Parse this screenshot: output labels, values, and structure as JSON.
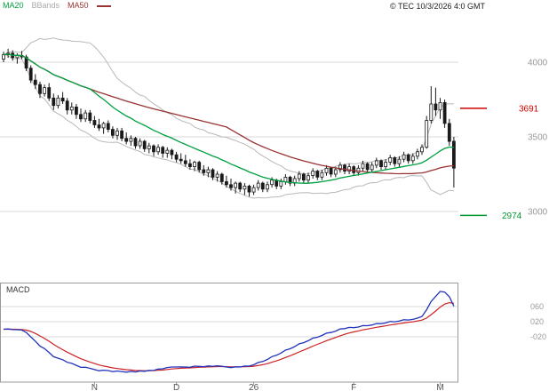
{
  "legend": {
    "ma20": "MA20",
    "bbands": "BBands",
    "ma50": "MA50"
  },
  "copyright": "© TEC 10/3/2026 4:0 GMT",
  "colors": {
    "ma20": "#00a040",
    "ma50": "#993333",
    "bbands": "#b8b8b8",
    "candle": "#1a1a1a",
    "macd_line": "#2233bb",
    "macd_signal": "#cc2222",
    "level_high": "#cc0000",
    "level_low": "#009933",
    "grid": "#d8d8d8",
    "axis_text": "#9a9a9a",
    "time_text": "#555555",
    "panel_border": "#999999"
  },
  "chart_data": {
    "type": "candlestick",
    "price_axis": {
      "ticks": [
        {
          "label": "4000",
          "value": 4000
        },
        {
          "label": "3500",
          "value": 3500
        },
        {
          "label": "3000",
          "value": 3000
        }
      ],
      "ylim": [
        2570,
        4360
      ]
    },
    "levels": [
      {
        "label": "3691",
        "value": 3691,
        "role": "resistance"
      },
      {
        "label": "2974",
        "value": 2974,
        "role": "support"
      }
    ],
    "x_axis": {
      "labels": [
        {
          "label": "N",
          "index": 20
        },
        {
          "label": "D",
          "index": 38
        },
        {
          "label": "26",
          "index": 55
        },
        {
          "label": "F",
          "index": 77
        },
        {
          "label": "M",
          "index": 96
        }
      ]
    },
    "indicators": {
      "ma20": {
        "period": 20
      },
      "ma50": {
        "period": 50
      },
      "bbands": {
        "period": 20,
        "stddev": 2
      },
      "macd": {
        "fast": 12,
        "slow": 26,
        "signal": 9
      }
    },
    "macd_axis": {
      "title": "MACD",
      "ticks": [
        {
          "label": "060",
          "value": 0.6
        },
        {
          "label": "020",
          "value": 0.2
        },
        {
          "label": "-020",
          "value": -0.2
        }
      ]
    },
    "candles": [
      [
        4020,
        4070,
        4000,
        4050
      ],
      [
        4050,
        4090,
        4030,
        4060
      ],
      [
        4060,
        4080,
        4010,
        4030
      ],
      [
        4030,
        4060,
        3990,
        4045
      ],
      [
        4045,
        4075,
        4020,
        4035
      ],
      [
        4035,
        4050,
        3940,
        3960
      ],
      [
        3960,
        3980,
        3860,
        3880
      ],
      [
        3880,
        3920,
        3820,
        3850
      ],
      [
        3850,
        3870,
        3760,
        3790
      ],
      [
        3790,
        3850,
        3770,
        3830
      ],
      [
        3830,
        3860,
        3740,
        3760
      ],
      [
        3760,
        3790,
        3680,
        3710
      ],
      [
        3710,
        3780,
        3690,
        3760
      ],
      [
        3760,
        3800,
        3720,
        3740
      ],
      [
        3740,
        3760,
        3650,
        3680
      ],
      [
        3680,
        3730,
        3650,
        3700
      ],
      [
        3700,
        3720,
        3620,
        3650
      ],
      [
        3650,
        3690,
        3600,
        3620
      ],
      [
        3620,
        3680,
        3600,
        3660
      ],
      [
        3660,
        3680,
        3590,
        3610
      ],
      [
        3610,
        3640,
        3560,
        3580
      ],
      [
        3580,
        3620,
        3540,
        3560
      ],
      [
        3560,
        3600,
        3520,
        3590
      ],
      [
        3590,
        3610,
        3530,
        3550
      ],
      [
        3550,
        3570,
        3490,
        3510
      ],
      [
        3510,
        3560,
        3480,
        3540
      ],
      [
        3540,
        3560,
        3470,
        3490
      ],
      [
        3490,
        3530,
        3450,
        3470
      ],
      [
        3470,
        3510,
        3440,
        3490
      ],
      [
        3490,
        3500,
        3420,
        3440
      ],
      [
        3440,
        3490,
        3420,
        3470
      ],
      [
        3470,
        3480,
        3400,
        3420
      ],
      [
        3420,
        3460,
        3390,
        3440
      ],
      [
        3440,
        3450,
        3370,
        3400
      ],
      [
        3400,
        3450,
        3380,
        3430
      ],
      [
        3430,
        3440,
        3360,
        3390
      ],
      [
        3390,
        3430,
        3360,
        3410
      ],
      [
        3410,
        3420,
        3350,
        3380
      ],
      [
        3380,
        3400,
        3330,
        3350
      ],
      [
        3350,
        3390,
        3320,
        3340
      ],
      [
        3340,
        3380,
        3300,
        3320
      ],
      [
        3320,
        3350,
        3280,
        3300
      ],
      [
        3300,
        3340,
        3270,
        3330
      ],
      [
        3330,
        3340,
        3260,
        3280
      ],
      [
        3280,
        3310,
        3240,
        3260
      ],
      [
        3260,
        3300,
        3230,
        3280
      ],
      [
        3280,
        3290,
        3210,
        3230
      ],
      [
        3230,
        3270,
        3200,
        3250
      ],
      [
        3250,
        3260,
        3180,
        3200
      ],
      [
        3200,
        3240,
        3160,
        3180
      ],
      [
        3180,
        3220,
        3140,
        3160
      ],
      [
        3160,
        3200,
        3120,
        3190
      ],
      [
        3190,
        3200,
        3130,
        3150
      ],
      [
        3150,
        3190,
        3110,
        3170
      ],
      [
        3170,
        3180,
        3100,
        3130
      ],
      [
        3130,
        3180,
        3110,
        3160
      ],
      [
        3160,
        3210,
        3140,
        3190
      ],
      [
        3190,
        3200,
        3130,
        3150
      ],
      [
        3150,
        3200,
        3130,
        3180
      ],
      [
        3180,
        3230,
        3160,
        3210
      ],
      [
        3210,
        3220,
        3150,
        3170
      ],
      [
        3170,
        3220,
        3150,
        3200
      ],
      [
        3200,
        3250,
        3180,
        3230
      ],
      [
        3230,
        3240,
        3170,
        3190
      ],
      [
        3190,
        3240,
        3170,
        3220
      ],
      [
        3220,
        3270,
        3200,
        3250
      ],
      [
        3250,
        3260,
        3190,
        3210
      ],
      [
        3210,
        3260,
        3190,
        3240
      ],
      [
        3240,
        3290,
        3220,
        3270
      ],
      [
        3270,
        3280,
        3210,
        3230
      ],
      [
        3230,
        3280,
        3210,
        3260
      ],
      [
        3260,
        3310,
        3240,
        3290
      ],
      [
        3290,
        3300,
        3230,
        3250
      ],
      [
        3250,
        3300,
        3230,
        3280
      ],
      [
        3280,
        3330,
        3260,
        3310
      ],
      [
        3310,
        3320,
        3250,
        3270
      ],
      [
        3270,
        3320,
        3250,
        3300
      ],
      [
        3300,
        3310,
        3240,
        3260
      ],
      [
        3260,
        3310,
        3240,
        3290
      ],
      [
        3290,
        3340,
        3270,
        3320
      ],
      [
        3320,
        3330,
        3260,
        3280
      ],
      [
        3280,
        3330,
        3260,
        3310
      ],
      [
        3310,
        3360,
        3290,
        3340
      ],
      [
        3340,
        3350,
        3280,
        3300
      ],
      [
        3300,
        3350,
        3280,
        3330
      ],
      [
        3330,
        3380,
        3310,
        3360
      ],
      [
        3360,
        3370,
        3300,
        3320
      ],
      [
        3320,
        3370,
        3300,
        3350
      ],
      [
        3350,
        3400,
        3330,
        3380
      ],
      [
        3380,
        3390,
        3320,
        3340
      ],
      [
        3340,
        3390,
        3320,
        3370
      ],
      [
        3370,
        3420,
        3350,
        3400
      ],
      [
        3400,
        3450,
        3380,
        3430
      ],
      [
        3430,
        3640,
        3420,
        3610
      ],
      [
        3610,
        3840,
        3590,
        3720
      ],
      [
        3720,
        3830,
        3640,
        3680
      ],
      [
        3680,
        3760,
        3620,
        3730
      ],
      [
        3730,
        3750,
        3560,
        3590
      ],
      [
        3590,
        3620,
        3440,
        3470
      ],
      [
        3470,
        3500,
        3160,
        3290
      ]
    ]
  }
}
